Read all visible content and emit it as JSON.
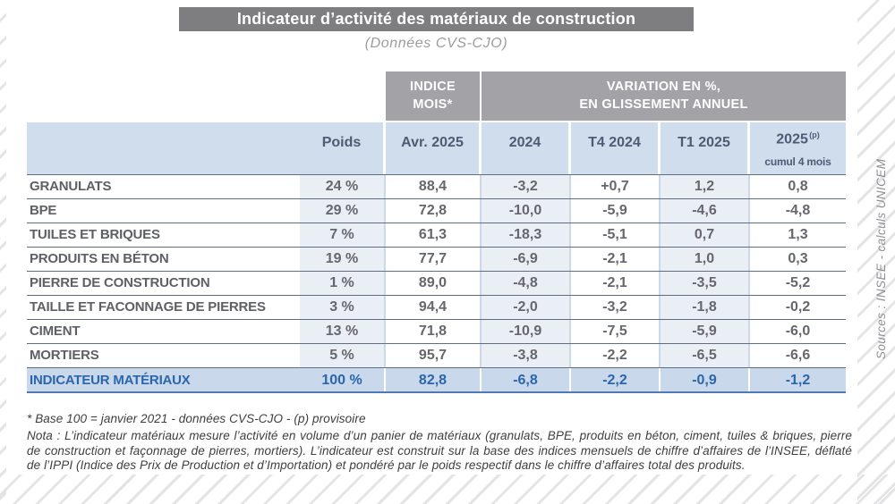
{
  "title": "Indicateur d’activité des matériaux de construction",
  "subtitle": "(Données CVS-CJO)",
  "header": {
    "indice_line1": "INDICE",
    "indice_line2": "MOIS*",
    "variation_line1": "VARIATION EN %,",
    "variation_line2": "EN GLISSEMENT ANNUEL",
    "col_weight": "Poids",
    "col_month": "Avr. 2025",
    "col_2024": "2024",
    "col_t4_2024": "T4 2024",
    "col_t1_2025": "T1 2025",
    "col_2025": "2025",
    "col_2025_sup": "(p)",
    "col_2025_note": "cumul  4 mois"
  },
  "rows": [
    {
      "label": "GRANULATS",
      "poids": "24 %",
      "indice": "88,4",
      "y2024": "-3,2",
      "t4": "+0,7",
      "t1": "1,2",
      "cumul": "0,8"
    },
    {
      "label": "BPE",
      "poids": "29 %",
      "indice": "72,8",
      "y2024": "-10,0",
      "t4": "-5,9",
      "t1": "-4,6",
      "cumul": "-4,8"
    },
    {
      "label": "TUILES ET BRIQUES",
      "poids": "7 %",
      "indice": "61,3",
      "y2024": "-18,3",
      "t4": "-5,1",
      "t1": "0,7",
      "cumul": "1,3"
    },
    {
      "label": "PRODUITS EN BÉTON",
      "poids": "19 %",
      "indice": "77,7",
      "y2024": "-6,9",
      "t4": "-2,1",
      "t1": "1,0",
      "cumul": "0,3"
    },
    {
      "label": "PIERRE DE CONSTRUCTION",
      "poids": "1 %",
      "indice": "89,0",
      "y2024": "-4,8",
      "t4": "-2,1",
      "t1": "-3,5",
      "cumul": "-5,2"
    },
    {
      "label": "TAILLE ET FACONNAGE DE PIERRES",
      "poids": "3 %",
      "indice": "94,4",
      "y2024": "-2,0",
      "t4": "-3,2",
      "t1": "-1,8",
      "cumul": "-0,2"
    },
    {
      "label": "CIMENT",
      "poids": "13 %",
      "indice": "71,8",
      "y2024": "-10,9",
      "t4": "-7,5",
      "t1": "-5,9",
      "cumul": "-6,0"
    },
    {
      "label": "MORTIERS",
      "poids": "5 %",
      "indice": "95,7",
      "y2024": "-3,8",
      "t4": "-2,2",
      "t1": "-6,5",
      "cumul": "-6,6"
    }
  ],
  "total_row": {
    "label": "INDICATEUR MATÉRIAUX",
    "poids": "100 %",
    "indice": "82,8",
    "y2024": "-6,8",
    "t4": "-2,2",
    "t1": "-0,9",
    "cumul": "-1,2"
  },
  "footnotes": {
    "line1": "* Base 100 = janvier 2021 - données CVS-CJO - (p) provisoire",
    "nota": "Nota :  L’indicateur matériaux mesure l’activité en volume d’un panier de matériaux (granulats, BPE, produits en béton, ciment, tuiles & briques, pierre de construction et façonnage de pierres, mortiers). L’indicateur est construit sur la base des indices mensuels de chiffre d’affaires de l’INSEE, déflaté de l’IPPI (Indice des Prix de Production et d’Importation) et pondéré par le poids respectif dans le chiffre d’affaires total des produits."
  },
  "source": "Sources : INSEE - calculs UNICEM",
  "colors": {
    "header_gray": "#a3a3a7",
    "title_gray": "#7e7e81",
    "subheader_blue": "#cfddec",
    "tint_blue": "#eaeff6",
    "total_blue": "#c9d8ea",
    "accent_blue": "#2b66ad"
  }
}
